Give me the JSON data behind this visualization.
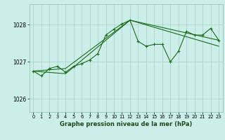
{
  "title": "Graphe pression niveau de la mer (hPa)",
  "bg_color": "#cceee8",
  "grid_color": "#aad4cc",
  "line_color": "#1a6b1a",
  "marker_color": "#1a6b1a",
  "xlim": [
    -0.5,
    23.5
  ],
  "ylim": [
    1025.65,
    1028.55
  ],
  "yticks": [
    1026,
    1027,
    1028
  ],
  "xticks": [
    0,
    1,
    2,
    3,
    4,
    5,
    6,
    7,
    8,
    9,
    10,
    11,
    12,
    13,
    14,
    15,
    16,
    17,
    18,
    19,
    20,
    21,
    22,
    23
  ],
  "series1": [
    [
      0,
      1026.75
    ],
    [
      1,
      1026.62
    ],
    [
      2,
      1026.82
    ],
    [
      3,
      1026.88
    ],
    [
      4,
      1026.72
    ],
    [
      5,
      1026.88
    ],
    [
      6,
      1026.95
    ],
    [
      7,
      1027.05
    ],
    [
      8,
      1027.22
    ],
    [
      9,
      1027.72
    ],
    [
      10,
      1027.88
    ],
    [
      11,
      1028.02
    ],
    [
      12,
      1028.12
    ],
    [
      13,
      1027.55
    ],
    [
      14,
      1027.42
    ],
    [
      15,
      1027.47
    ],
    [
      16,
      1027.47
    ],
    [
      17,
      1027.0
    ],
    [
      18,
      1027.28
    ],
    [
      19,
      1027.82
    ],
    [
      20,
      1027.72
    ],
    [
      21,
      1027.72
    ],
    [
      22,
      1027.9
    ],
    [
      23,
      1027.58
    ]
  ],
  "series2": [
    [
      0,
      1026.75
    ],
    [
      4,
      1026.82
    ],
    [
      12,
      1028.12
    ],
    [
      23,
      1027.58
    ]
  ],
  "series3": [
    [
      0,
      1026.75
    ],
    [
      4,
      1026.68
    ],
    [
      12,
      1028.12
    ],
    [
      23,
      1027.42
    ]
  ],
  "xlabel_fontsize": 6.0,
  "xtick_fontsize": 4.8,
  "ytick_fontsize": 5.5
}
